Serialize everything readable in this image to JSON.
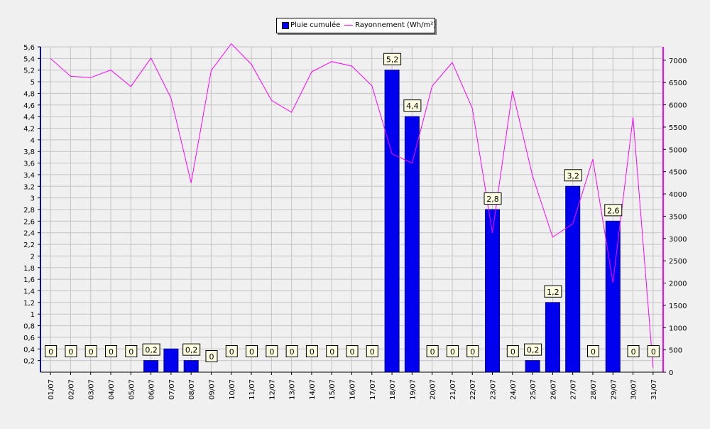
{
  "chart_data": {
    "type": "bar",
    "categories": [
      "01/07",
      "02/07",
      "03/07",
      "04/07",
      "05/07",
      "06/07",
      "07/07",
      "08/07",
      "09/07",
      "10/07",
      "11/07",
      "12/07",
      "13/07",
      "14/07",
      "15/07",
      "16/07",
      "17/07",
      "18/07",
      "19/07",
      "20/07",
      "21/07",
      "22/07",
      "23/07",
      "24/07",
      "25/07",
      "26/07",
      "27/07",
      "28/07",
      "29/07",
      "30/07",
      "31/07"
    ],
    "series": [
      {
        "name": "Pluie cumulée",
        "type": "bar",
        "axis": "left",
        "color": "#0000ee",
        "values": [
          0,
          0,
          0,
          0,
          0,
          0.2,
          0.4,
          0.2,
          0,
          0,
          0,
          0,
          0,
          0,
          0,
          0,
          0,
          5.2,
          4.4,
          0,
          0,
          0,
          2.8,
          0,
          0.2,
          1.2,
          3.2,
          0,
          2.6,
          0,
          0
        ],
        "labels": [
          "0",
          "0",
          "0",
          "0",
          "0",
          "0,2",
          "",
          "0,2",
          "0",
          "0",
          "0",
          "0",
          "0",
          "0",
          "0",
          "0",
          "0",
          "5,2",
          "4,4",
          "0",
          "0",
          "0",
          "2,8",
          "0",
          "0,2",
          "1,2",
          "3,2",
          "0",
          "2,6",
          "0",
          "0"
        ]
      },
      {
        "name": "Rayonnement (Wh/m²)",
        "type": "line",
        "axis": "right",
        "color": "#ff00ff",
        "values": [
          7040,
          6640,
          6610,
          6780,
          6410,
          7050,
          6150,
          4250,
          6770,
          7370,
          6910,
          6100,
          5830,
          6740,
          6970,
          6870,
          6430,
          4900,
          4690,
          6420,
          6950,
          5920,
          3130,
          6310,
          4400,
          3030,
          3330,
          4780,
          2010,
          5720,
          100
        ]
      }
    ],
    "y_left": {
      "range": [
        0,
        5.6
      ],
      "ticks": [
        "0,2",
        "0,4",
        "0,6",
        "0,8",
        "1",
        "1,2",
        "1,4",
        "1,6",
        "1,8",
        "2",
        "2,2",
        "2,4",
        "2,6",
        "2,8",
        "3",
        "3,2",
        "3,4",
        "3,6",
        "3,8",
        "4",
        "4,2",
        "4,4",
        "4,6",
        "4,8",
        "5",
        "5,2",
        "5,4",
        "5,6"
      ]
    },
    "y_right": {
      "range": [
        0,
        7300
      ],
      "ticks": [
        "0",
        "500",
        "1000",
        "1500",
        "2000",
        "2500",
        "3000",
        "3500",
        "4000",
        "4500",
        "5000",
        "5500",
        "6000",
        "6500",
        "7000"
      ]
    },
    "grid": true,
    "legend_position": "top-center"
  }
}
